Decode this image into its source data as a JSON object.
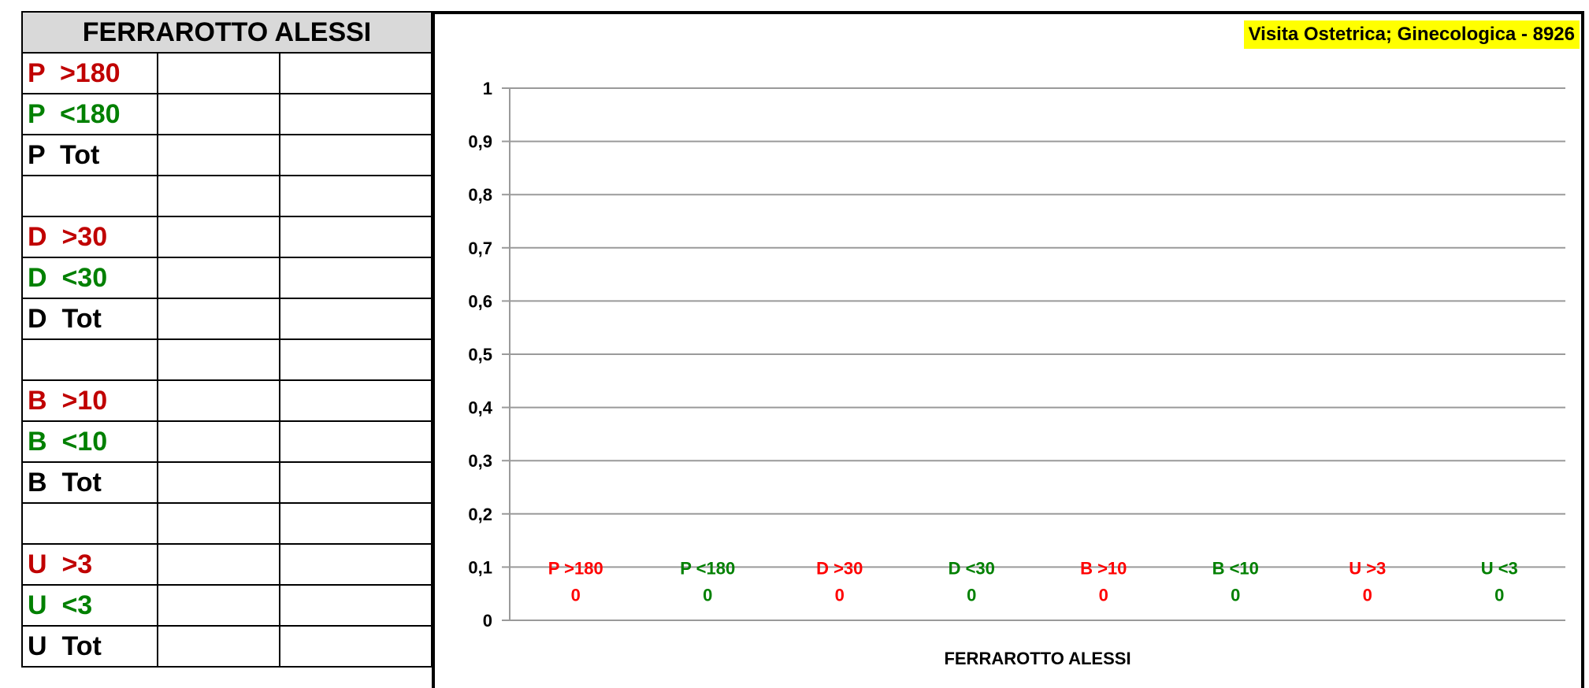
{
  "table": {
    "header": "FERRAROTTO ALESSI",
    "rows": [
      {
        "label": "P  >180",
        "color": "#c00000"
      },
      {
        "label": "P  <180",
        "color": "#008000"
      },
      {
        "label": "P  Tot",
        "color": "#000000"
      },
      {
        "label": "",
        "color": "#000000"
      },
      {
        "label": "D  >30",
        "color": "#c00000"
      },
      {
        "label": "D  <30",
        "color": "#008000"
      },
      {
        "label": "D  Tot",
        "color": "#000000"
      },
      {
        "label": "",
        "color": "#000000"
      },
      {
        "label": "B  >10",
        "color": "#c00000"
      },
      {
        "label": "B  <10",
        "color": "#008000"
      },
      {
        "label": "B  Tot",
        "color": "#000000"
      },
      {
        "label": "",
        "color": "#000000"
      },
      {
        "label": "U  >3",
        "color": "#c00000"
      },
      {
        "label": "U  <3",
        "color": "#008000"
      },
      {
        "label": "U  Tot",
        "color": "#000000"
      }
    ]
  },
  "chart_data": {
    "type": "bar",
    "title": "Visita Ostetrica; Ginecologica - 8926",
    "xlabel": "FERRAROTTO ALESSI",
    "ylabel": "",
    "ylim": [
      0,
      1
    ],
    "yticks": [
      "0",
      "0,1",
      "0,2",
      "0,3",
      "0,4",
      "0,5",
      "0,6",
      "0,7",
      "0,8",
      "0,9",
      "1"
    ],
    "grid": true,
    "categories": [
      "P >180",
      "P <180",
      "D >30",
      "D <30",
      "B >10",
      "B <10",
      "U >3",
      "U <3"
    ],
    "values": [
      0,
      0,
      0,
      0,
      0,
      0,
      0,
      0
    ],
    "value_labels": [
      "0",
      "0",
      "0",
      "0",
      "0",
      "0",
      "0",
      "0"
    ],
    "colors": [
      "#ff0000",
      "#008000",
      "#ff0000",
      "#008000",
      "#ff0000",
      "#008000",
      "#ff0000",
      "#008000"
    ]
  }
}
